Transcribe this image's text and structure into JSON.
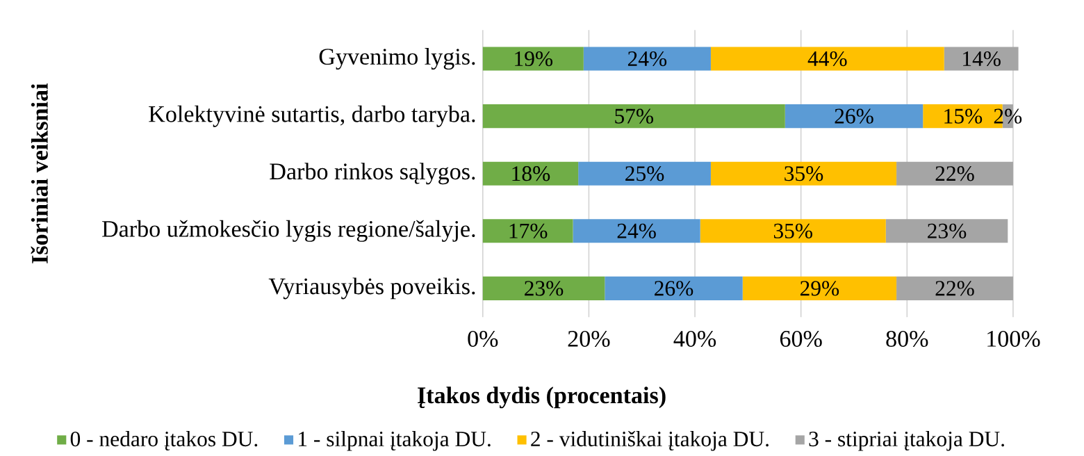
{
  "chart_data": {
    "type": "bar",
    "orientation": "horizontal",
    "stacked": true,
    "xlabel": "Įtakos dydis (procentais)",
    "ylabel": "Išoriniai veiksniai",
    "categories": [
      "Gyvenimo lygis.",
      "Kolektyvinė sutartis, darbo taryba.",
      "Darbo rinkos sąlygos.",
      "Darbo užmokesčio lygis regione/šalyje.",
      "Vyriausybės poveikis."
    ],
    "series": [
      {
        "name": "0 - nedaro įtakos DU.",
        "color": "#70ad47",
        "values": [
          19,
          57,
          18,
          17,
          23
        ],
        "value_labels": [
          "19%",
          "57%",
          "18%",
          "17%",
          "23%"
        ]
      },
      {
        "name": "1 - silpnai įtakoja DU.",
        "color": "#5b9bd5",
        "values": [
          24,
          26,
          25,
          24,
          26
        ],
        "value_labels": [
          "24%",
          "26%",
          "25%",
          "24%",
          "26%"
        ]
      },
      {
        "name": "2 - vidutiniškai įtakoja DU.",
        "color": "#ffc000",
        "values": [
          44,
          15,
          35,
          35,
          29
        ],
        "value_labels": [
          "44%",
          "15%",
          "35%",
          "35%",
          "29%"
        ]
      },
      {
        "name": "3 - stipriai įtakoja DU.",
        "color": "#a5a5a5",
        "values": [
          14,
          2,
          22,
          23,
          22
        ],
        "value_labels": [
          "14%",
          "2%",
          "22%",
          "23%",
          "22%"
        ]
      }
    ],
    "xlim": [
      0,
      101
    ],
    "xticks": [
      {
        "value": 0,
        "label": "0%"
      },
      {
        "value": 20,
        "label": "20%"
      },
      {
        "value": 40,
        "label": "40%"
      },
      {
        "value": 60,
        "label": "60%"
      },
      {
        "value": 80,
        "label": "80%"
      },
      {
        "value": 100,
        "label": "100%"
      }
    ],
    "grid": "x",
    "legend": "bottom"
  }
}
